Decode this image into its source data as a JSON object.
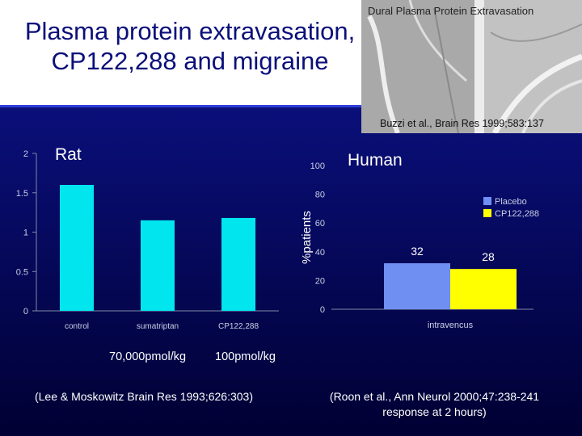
{
  "slide": {
    "title": "Plasma protein extravasation, CP122,288 and migraine",
    "photo_caption": "Dural Plasma Protein Extravasation",
    "photo_credit": "Buzzi et al., Brain Res 1999;583:137",
    "colors": {
      "title": "#0a0f7a",
      "background": "#0a0f7a",
      "rat_bar": "#00e5ee",
      "placebo": "#6f8ff2",
      "cp122288": "#ffff00"
    }
  },
  "rat_panel": {
    "label": "Rat",
    "dose_left": "70,000pmol/kg",
    "dose_right": "100pmol/kg",
    "reference": "(Lee & Moskowitz Brain Res 1993;626:303)"
  },
  "human_panel": {
    "label": "Human",
    "reference_line1": "(Roon et al., Ann Neurol 2000;47:238-241",
    "reference_line2": "response at 2 hours)"
  },
  "chart_data": [
    {
      "type": "bar",
      "categories": [
        "control",
        "sumatriptan",
        "CP122,288"
      ],
      "values": [
        1.6,
        1.15,
        1.18
      ],
      "yticks": [
        "0",
        "0.5",
        "1",
        "1.5",
        "2"
      ],
      "ylim": [
        0,
        2
      ],
      "xlabel": "",
      "ylabel": "",
      "color": "#00e5ee"
    },
    {
      "type": "bar",
      "categories": [
        "intravencus"
      ],
      "series": [
        {
          "name": "Placebo",
          "values": [
            32
          ],
          "label": "32",
          "color": "#6f8ff2"
        },
        {
          "name": "CP122,288",
          "values": [
            28
          ],
          "label": "28",
          "color": "#ffff00"
        }
      ],
      "yticks": [
        "0",
        "20",
        "40",
        "60",
        "80",
        "100"
      ],
      "ylim": [
        0,
        100
      ],
      "ylabel": "%patients",
      "legend": "top-right"
    }
  ]
}
